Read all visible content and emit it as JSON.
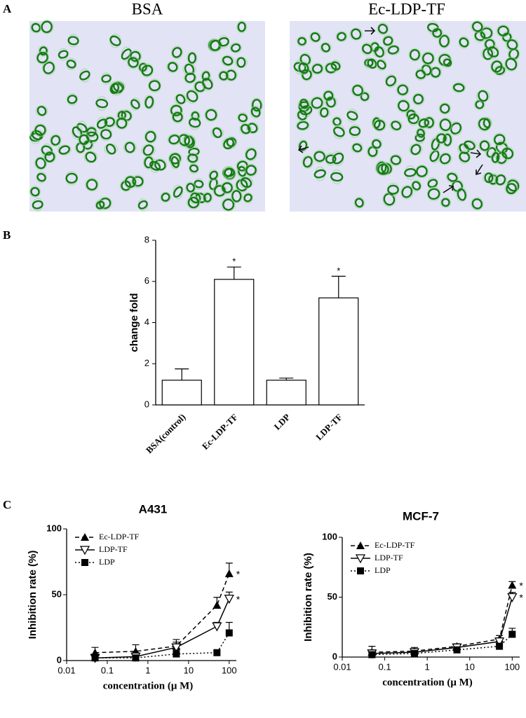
{
  "panel_labels": [
    "A",
    "B",
    "C"
  ],
  "images": [
    {
      "title": "BSA"
    },
    {
      "title": "Ec-LDP-TF"
    }
  ],
  "chart_data": [
    {
      "type": "bar",
      "ylabel": "change fold",
      "categories": [
        "BSA(control)",
        "Ec-LDP-TF",
        "LDP",
        "LDP-TF"
      ],
      "values": [
        1.2,
        6.1,
        1.2,
        5.2
      ],
      "errors": [
        0.55,
        0.6,
        0.1,
        1.05
      ],
      "significance": [
        null,
        "*",
        null,
        "*"
      ],
      "ylim": [
        0,
        8
      ],
      "yticks": [
        0,
        2,
        4,
        6,
        8
      ],
      "color": "#ffffff"
    },
    {
      "type": "line",
      "title": "A431",
      "xlabel": "concentration (μ M)",
      "ylabel": "Inhibition rate (%)",
      "xscale": "log",
      "xlim": [
        0.01,
        150
      ],
      "xticks": [
        0.01,
        0.1,
        1,
        10,
        100
      ],
      "ylim": [
        0,
        100
      ],
      "yticks": [
        0,
        50,
        100
      ],
      "legend": "upper left",
      "x": [
        0.05,
        0.5,
        5,
        50,
        100
      ],
      "series": [
        {
          "name": "Ec-LDP-TF",
          "color": "#000000",
          "marker": "triangle",
          "dash": "dashed",
          "values": [
            6,
            7,
            11,
            42,
            66
          ],
          "errors": [
            4,
            5,
            5,
            6,
            8
          ],
          "significance": [
            null,
            null,
            null,
            null,
            "*"
          ]
        },
        {
          "name": "LDP-TF",
          "color": "#000000",
          "marker": "triangle-down",
          "dash": "solid",
          "values": [
            2,
            3,
            10,
            26,
            47
          ],
          "errors": [
            3,
            3,
            4,
            3,
            5
          ],
          "significance": [
            null,
            null,
            null,
            null,
            "*"
          ]
        },
        {
          "name": "LDP",
          "color": "#000000",
          "marker": "square",
          "dash": "dotted",
          "values": [
            2,
            2,
            5,
            6,
            21
          ],
          "errors": [
            2,
            2,
            3,
            2,
            8
          ],
          "significance": [
            null,
            null,
            null,
            null,
            null
          ]
        }
      ]
    },
    {
      "type": "line",
      "title": "MCF-7",
      "xlabel": "concentration (μ M)",
      "ylabel": "Inhibition rate (%)",
      "xscale": "log",
      "xlim": [
        0.01,
        150
      ],
      "xticks": [
        0.01,
        0.1,
        1,
        10,
        100
      ],
      "ylim": [
        0,
        100
      ],
      "yticks": [
        0,
        50,
        100
      ],
      "legend": "upper left",
      "x": [
        0.05,
        0.5,
        5,
        50,
        100
      ],
      "series": [
        {
          "name": "Ec-LDP-TF",
          "color": "#000000",
          "marker": "triangle",
          "dash": "dashed",
          "values": [
            4,
            5,
            9,
            15,
            60
          ],
          "errors": [
            5,
            3,
            2,
            3,
            3
          ],
          "significance": [
            null,
            null,
            null,
            null,
            "*"
          ]
        },
        {
          "name": "LDP-TF",
          "color": "#000000",
          "marker": "triangle-down",
          "dash": "solid",
          "values": [
            3,
            4,
            8,
            13,
            50
          ],
          "errors": [
            3,
            3,
            3,
            3,
            4
          ],
          "significance": [
            null,
            null,
            null,
            null,
            "*"
          ]
        },
        {
          "name": "LDP",
          "color": "#000000",
          "marker": "square",
          "dash": "dotted",
          "values": [
            2,
            3,
            6,
            9,
            19
          ],
          "errors": [
            2,
            2,
            2,
            2,
            5
          ],
          "significance": [
            null,
            null,
            null,
            null,
            null
          ]
        }
      ]
    }
  ]
}
